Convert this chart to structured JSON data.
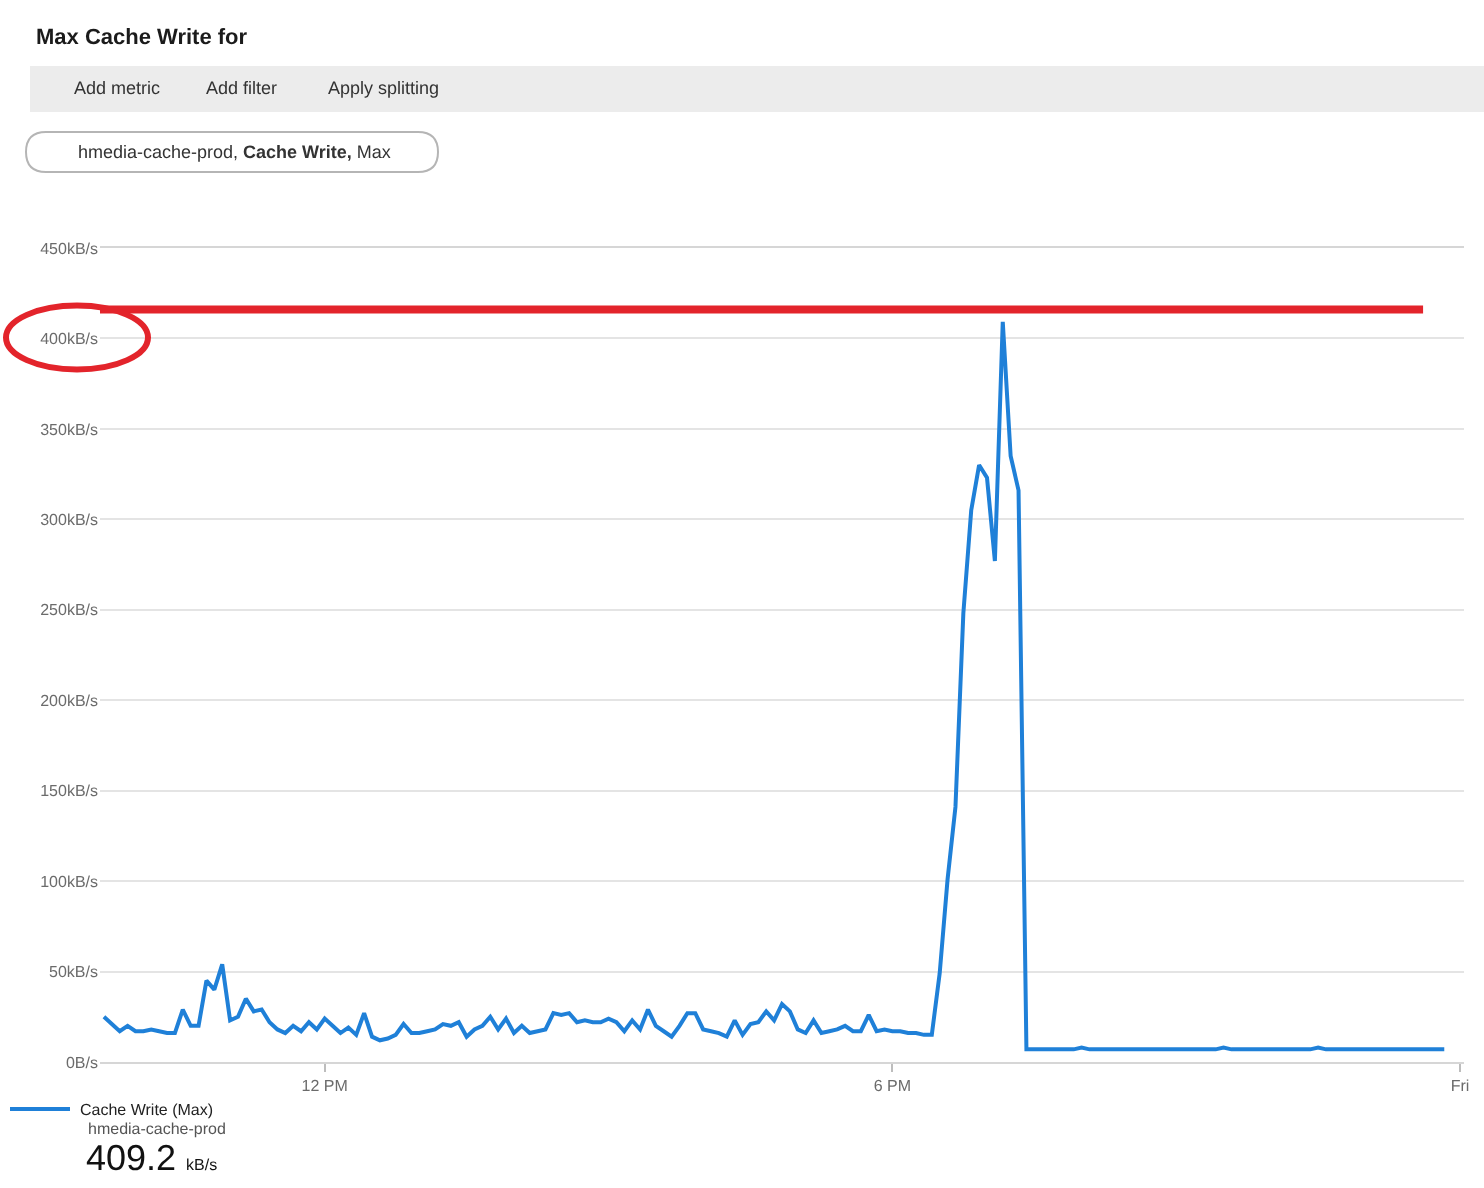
{
  "chart_data": {
    "type": "line",
    "title": "Max Cache Write for",
    "annotations": [
      "Add metric",
      "Add filter",
      "Apply splitting",
      "hmedia-cache-prod, Cache Write, Max",
      "hmedia-cache-prod",
      "409.2 kB/s"
    ],
    "categories": [
      null,
      null,
      null,
      null,
      null,
      null,
      null,
      null,
      null,
      null,
      null,
      null,
      null,
      null,
      null,
      null,
      null,
      null,
      null,
      null,
      null,
      null,
      null,
      null,
      null,
      null,
      null,
      null,
      "12 PM",
      null,
      null,
      null,
      null,
      null,
      null,
      null,
      null,
      null,
      null,
      null,
      null,
      null,
      null,
      null,
      null,
      null,
      null,
      null,
      null,
      null,
      null,
      null,
      null,
      null,
      null,
      null,
      null,
      null,
      null,
      null,
      null,
      null,
      null,
      null,
      null,
      null,
      null,
      null,
      null,
      null,
      null,
      null,
      null,
      null,
      null,
      null,
      null,
      null,
      null,
      null,
      null,
      null,
      null,
      null,
      null,
      null,
      null,
      null,
      null,
      null,
      null,
      null,
      null,
      null,
      null,
      null,
      null,
      null,
      null,
      null,
      "6 PM",
      null,
      null,
      null,
      null,
      null,
      null,
      null,
      null,
      null,
      null,
      null,
      null,
      null,
      null,
      null,
      null,
      null,
      null,
      null,
      null,
      null,
      null,
      null,
      null,
      null,
      null,
      null,
      null,
      null,
      null,
      null,
      null,
      null,
      null,
      null,
      null,
      null,
      null,
      null,
      null,
      null,
      null,
      null,
      null,
      null,
      null,
      null,
      null,
      null,
      null,
      null,
      null,
      null,
      null,
      null,
      null,
      null,
      null,
      null,
      null,
      null,
      null,
      null,
      null,
      null,
      null,
      null,
      null,
      null,
      null,
      null,
      "Fri"
    ],
    "series": [
      {
        "name": "Cache Write (Max)",
        "color": "#1f80d8",
        "values": [
          25,
          21,
          17,
          20,
          17,
          17,
          18,
          17,
          16,
          16,
          29,
          20,
          20,
          45,
          40,
          54,
          23,
          25,
          35,
          28,
          29,
          22,
          18,
          16,
          20,
          17,
          22,
          18,
          24,
          20,
          16,
          19,
          15,
          27,
          14,
          12,
          13,
          15,
          21,
          16,
          16,
          17,
          18,
          21,
          20,
          22,
          14,
          18,
          20,
          25,
          18,
          24,
          16,
          20,
          16,
          17,
          18,
          27,
          26,
          27,
          22,
          23,
          22,
          22,
          24,
          22,
          17,
          23,
          18,
          29,
          20,
          17,
          14,
          20,
          27,
          27,
          18,
          17,
          16,
          14,
          23,
          15,
          21,
          22,
          28,
          23,
          32,
          28,
          18,
          16,
          23,
          16,
          17,
          18,
          20,
          17,
          17,
          26,
          17,
          18,
          17,
          17,
          16,
          16,
          15,
          15,
          49,
          101,
          141,
          248,
          305,
          330,
          323,
          277,
          409.2,
          335,
          316,
          7,
          7,
          7,
          7,
          7,
          7,
          7,
          8,
          7,
          7,
          7,
          7,
          7,
          7,
          7,
          7,
          7,
          7,
          7,
          7,
          7,
          7,
          7,
          7,
          7,
          8,
          7,
          7,
          7,
          7,
          7,
          7,
          7,
          7,
          7,
          7,
          7,
          8,
          7,
          7,
          7,
          7,
          7,
          7,
          7,
          7,
          7,
          7,
          7,
          7,
          7,
          7,
          7,
          7,
          null,
          null
        ]
      }
    ],
    "ylim": [
      0,
      450
    ],
    "yticks": [
      {
        "value": 0,
        "label": "0B/s"
      },
      {
        "value": 50,
        "label": "50kB/s"
      },
      {
        "value": 100,
        "label": "100kB/s"
      },
      {
        "value": 150,
        "label": "150kB/s"
      },
      {
        "value": 200,
        "label": "200kB/s"
      },
      {
        "value": 250,
        "label": "250kB/s"
      },
      {
        "value": 300,
        "label": "300kB/s"
      },
      {
        "value": 350,
        "label": "350kB/s"
      },
      {
        "value": 400,
        "label": "400kB/s"
      },
      {
        "value": 450,
        "label": "450kB/s"
      }
    ],
    "ref_lines": [
      {
        "axis": "y",
        "value": 416,
        "color": "#e3242b"
      }
    ],
    "grid": "y",
    "legend": "bottom left",
    "line_style": "solid"
  }
}
